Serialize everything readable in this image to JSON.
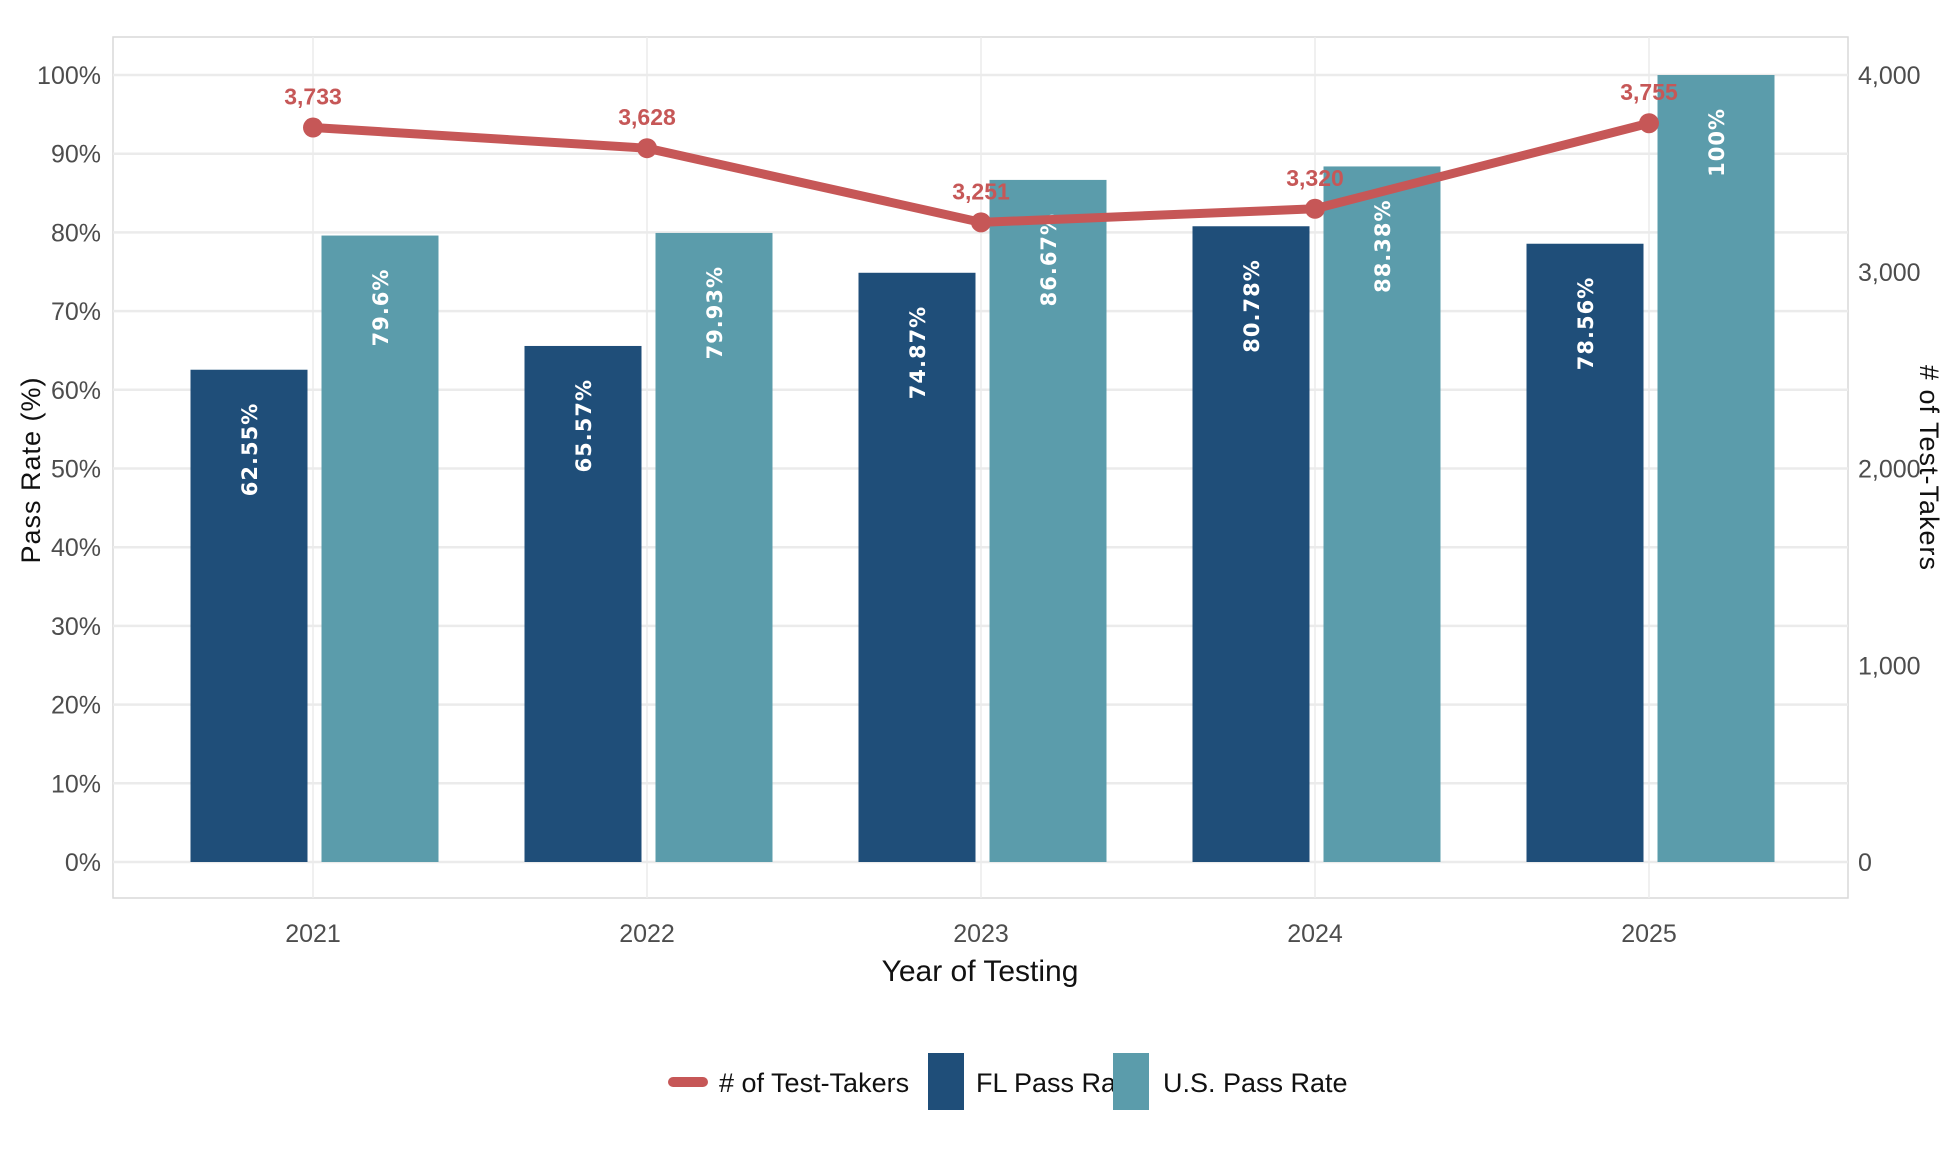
{
  "chart_data": {
    "type": "bar",
    "categories": [
      "2021",
      "2022",
      "2023",
      "2024",
      "2025"
    ],
    "xlabel": "Year of Testing",
    "ylabel": "Pass Rate (%)",
    "y2label": "# of Test-Takers",
    "ylim": [
      0,
      100
    ],
    "y2lim": [
      0,
      4000
    ],
    "yticks": [
      "0%",
      "10%",
      "20%",
      "30%",
      "40%",
      "50%",
      "60%",
      "70%",
      "80%",
      "90%",
      "100%"
    ],
    "y2ticks": [
      "0",
      "1,000",
      "2,000",
      "3,000",
      "4,000"
    ],
    "grid": true,
    "legend_position": "bottom",
    "series": [
      {
        "name": "FL Pass Rate",
        "kind": "bar",
        "color": "#1f4e79",
        "values": [
          62.55,
          65.57,
          74.87,
          80.78,
          78.56
        ],
        "labels": [
          "62.55%",
          "65.57%",
          "74.87%",
          "80.78%",
          "78.56%"
        ]
      },
      {
        "name": "U.S. Pass Rate",
        "kind": "bar",
        "color": "#5b9cab",
        "values": [
          79.6,
          79.93,
          86.67,
          88.38,
          100
        ],
        "labels": [
          "79.6%",
          "79.93%",
          "86.67%",
          "88.38%",
          "100%"
        ]
      },
      {
        "name": "# of Test-Takers",
        "kind": "line",
        "axis": "secondary",
        "color": "#c65757",
        "values": [
          3733,
          3628,
          3251,
          3320,
          3755
        ],
        "labels": [
          "3,733",
          "3,628",
          "3,251",
          "3,320",
          "3,755"
        ]
      }
    ],
    "legend": [
      "# of Test-Takers",
      "FL Pass Rate",
      "U.S. Pass Rate"
    ]
  }
}
